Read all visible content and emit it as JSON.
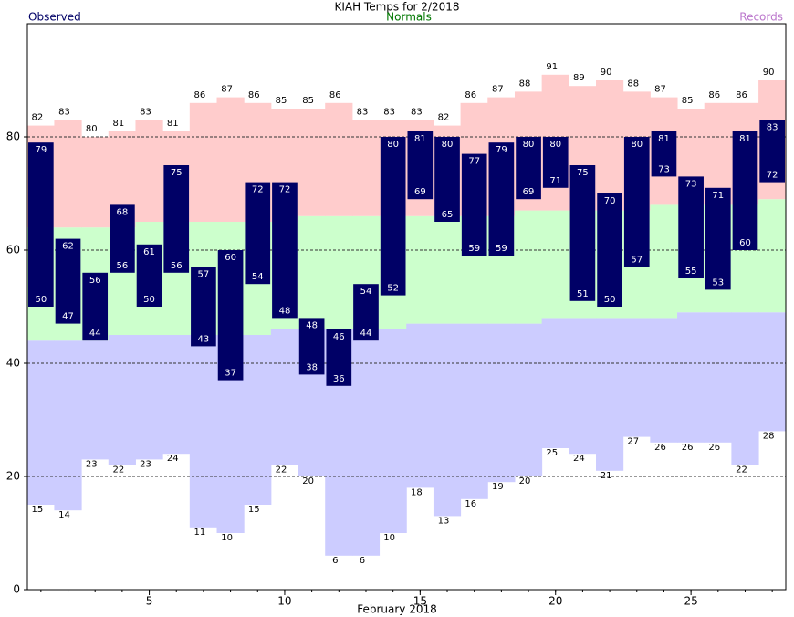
{
  "chart_data": {
    "type": "range-bar",
    "title": "KIAH Temps for 2/2018",
    "x_label": "February 2018",
    "x": [
      1,
      2,
      3,
      4,
      5,
      6,
      7,
      8,
      9,
      10,
      11,
      12,
      13,
      14,
      15,
      16,
      17,
      18,
      19,
      20,
      21,
      22,
      23,
      24,
      25,
      26,
      27,
      28
    ],
    "series": [
      {
        "name": "Observed",
        "color": "#000066",
        "high": [
          79,
          62,
          56,
          68,
          61,
          75,
          57,
          60,
          72,
          72,
          48,
          46,
          54,
          80,
          81,
          80,
          77,
          79,
          80,
          80,
          75,
          70,
          80,
          81,
          73,
          71,
          81,
          83
        ],
        "low": [
          50,
          47,
          44,
          56,
          50,
          56,
          43,
          37,
          54,
          48,
          38,
          36,
          44,
          52,
          69,
          65,
          59,
          59,
          69,
          71,
          51,
          50,
          57,
          73,
          55,
          53,
          60,
          72
        ]
      },
      {
        "name": "Normals",
        "color": "#007700",
        "fill": "#ccffcc",
        "high": [
          64,
          64,
          64,
          64,
          65,
          65,
          65,
          65,
          65,
          65,
          66,
          66,
          66,
          66,
          66,
          66,
          66,
          66,
          67,
          67,
          67,
          67,
          67,
          68,
          68,
          68,
          68,
          69
        ],
        "low": [
          44,
          44,
          44,
          45,
          45,
          45,
          45,
          45,
          45,
          46,
          46,
          46,
          46,
          46,
          47,
          47,
          47,
          47,
          47,
          48,
          48,
          48,
          48,
          48,
          49,
          49,
          49,
          49
        ]
      },
      {
        "name": "Records",
        "color": "#bb77cc",
        "high_fill": "#ffcccc",
        "low_fill": "#ccccff",
        "high": [
          82,
          83,
          80,
          81,
          83,
          81,
          86,
          87,
          86,
          85,
          85,
          86,
          83,
          83,
          83,
          82,
          86,
          87,
          88,
          91,
          89,
          90,
          88,
          87,
          85,
          86,
          86,
          90
        ],
        "low": [
          15,
          14,
          23,
          22,
          23,
          24,
          11,
          10,
          15,
          22,
          20,
          6,
          6,
          10,
          18,
          13,
          16,
          19,
          20,
          25,
          24,
          21,
          27,
          26,
          26,
          26,
          22,
          28
        ]
      }
    ],
    "xlim": [
      0.5,
      28.5
    ],
    "xticks": [
      5,
      10,
      15,
      20,
      25
    ],
    "ylim": [
      0,
      100
    ],
    "yticks": [
      0,
      20,
      40,
      60,
      80
    ],
    "grid": true
  }
}
